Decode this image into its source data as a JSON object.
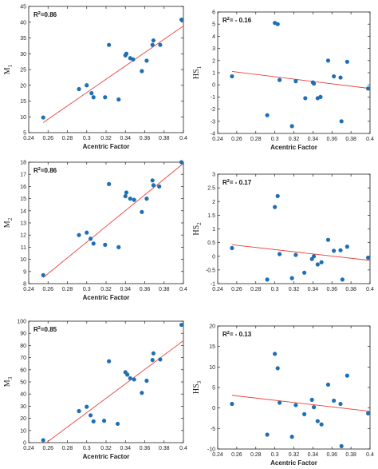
{
  "chart_data": [
    {
      "type": "scatter",
      "id": "p1",
      "ylabel_main": "M",
      "ylabel_sub": "1",
      "xlabel": "Acentric Factor",
      "annotation": {
        "main": "R",
        "sup": "2",
        "rest": "=0.86"
      },
      "xlim": [
        0.24,
        0.4
      ],
      "ylim": [
        5,
        45
      ],
      "xticks": [
        "0.24",
        "0.26",
        "0.28",
        "0.3",
        "0.32",
        "0.34",
        "0.36",
        "0.38",
        "0.4"
      ],
      "yticks": [
        "5",
        "10",
        "15",
        "20",
        "25",
        "30",
        "35",
        "40",
        "45"
      ],
      "points": [
        [
          0.255,
          9.8
        ],
        [
          0.292,
          18.8
        ],
        [
          0.3,
          20.0
        ],
        [
          0.305,
          17.5
        ],
        [
          0.307,
          16.2
        ],
        [
          0.319,
          16.2
        ],
        [
          0.323,
          32.8
        ],
        [
          0.333,
          15.5
        ],
        [
          0.34,
          29.5
        ],
        [
          0.341,
          30.0
        ],
        [
          0.345,
          28.6
        ],
        [
          0.348,
          28.2
        ],
        [
          0.357,
          24.5
        ],
        [
          0.362,
          27.8
        ],
        [
          0.368,
          32.8
        ],
        [
          0.369,
          34.2
        ],
        [
          0.376,
          32.8
        ],
        [
          0.398,
          40.8
        ]
      ],
      "fit": [
        [
          0.255,
          8.2
        ],
        [
          0.4,
          38.8
        ]
      ]
    },
    {
      "type": "scatter",
      "id": "p2",
      "ylabel_main": "HS",
      "ylabel_sub": "1",
      "xlabel": "Acentric Factor",
      "annotation": {
        "main": "R",
        "sup": "2",
        "rest": "= - 0.16"
      },
      "xlim": [
        0.24,
        0.4
      ],
      "ylim": [
        -4,
        6
      ],
      "xticks": [
        "0.24",
        "0.26",
        "0.28",
        "0.3",
        "0.32",
        "0.34",
        "0.36",
        "0.38",
        "0.4"
      ],
      "yticks": [
        "-4",
        "-3",
        "-2",
        "-1",
        "0",
        "1",
        "2",
        "3",
        "4",
        "5",
        "6"
      ],
      "points": [
        [
          0.255,
          0.7
        ],
        [
          0.292,
          -2.5
        ],
        [
          0.3,
          5.1
        ],
        [
          0.303,
          5.0
        ],
        [
          0.305,
          0.4
        ],
        [
          0.318,
          -3.4
        ],
        [
          0.322,
          0.3
        ],
        [
          0.332,
          -1.1
        ],
        [
          0.34,
          0.2
        ],
        [
          0.341,
          0.1
        ],
        [
          0.345,
          -1.1
        ],
        [
          0.348,
          -1.0
        ],
        [
          0.356,
          2.0
        ],
        [
          0.362,
          0.7
        ],
        [
          0.369,
          0.6
        ],
        [
          0.37,
          -3.0
        ],
        [
          0.376,
          1.9
        ],
        [
          0.398,
          -0.3
        ]
      ],
      "fit": [
        [
          0.255,
          1.1
        ],
        [
          0.4,
          -0.3
        ]
      ]
    },
    {
      "type": "scatter",
      "id": "p3",
      "ylabel_main": "M",
      "ylabel_sub": "2",
      "xlabel": "Acentric Factor",
      "annotation": {
        "main": "R",
        "sup": "2",
        "rest": "=0.86"
      },
      "xlim": [
        0.24,
        0.4
      ],
      "ylim": [
        8,
        18
      ],
      "xticks": [
        "0.24",
        "0.26",
        "0.28",
        "0.3",
        "0.32",
        "0.34",
        "0.36",
        "0.38",
        "0.4"
      ],
      "yticks": [
        "8",
        "9",
        "10",
        "11",
        "12",
        "13",
        "14",
        "15",
        "16",
        "17",
        "18"
      ],
      "points": [
        [
          0.255,
          8.7
        ],
        [
          0.292,
          12.0
        ],
        [
          0.3,
          12.2
        ],
        [
          0.304,
          11.7
        ],
        [
          0.307,
          11.3
        ],
        [
          0.319,
          11.2
        ],
        [
          0.323,
          16.2
        ],
        [
          0.333,
          11.0
        ],
        [
          0.34,
          15.2
        ],
        [
          0.341,
          15.5
        ],
        [
          0.345,
          15.0
        ],
        [
          0.349,
          14.9
        ],
        [
          0.357,
          13.9
        ],
        [
          0.362,
          15.0
        ],
        [
          0.368,
          16.5
        ],
        [
          0.369,
          16.1
        ],
        [
          0.375,
          16.0
        ],
        [
          0.398,
          18.0
        ]
      ],
      "fit": [
        [
          0.255,
          8.5
        ],
        [
          0.4,
          17.9
        ]
      ]
    },
    {
      "type": "scatter",
      "id": "p4",
      "ylabel_main": "HS",
      "ylabel_sub": "2",
      "xlabel": "",
      "annotation": {
        "main": "R",
        "sup": "2",
        "rest": "= - 0.17"
      },
      "xlim": [
        0.24,
        0.4
      ],
      "ylim": [
        -1,
        3
      ],
      "xticks": [
        "0.24",
        "0.26",
        "0.28",
        "0.3",
        "0.32",
        "0.34",
        "0.36",
        "0.38",
        "0.4"
      ],
      "yticks": [
        "-1",
        "-0.5",
        "0",
        "0.5",
        "1",
        "1.5",
        "2",
        "2.5",
        "3"
      ],
      "points": [
        [
          0.255,
          0.3
        ],
        [
          0.292,
          -0.85
        ],
        [
          0.3,
          1.8
        ],
        [
          0.303,
          2.2
        ],
        [
          0.305,
          0.08
        ],
        [
          0.318,
          -0.8
        ],
        [
          0.322,
          0.05
        ],
        [
          0.331,
          -0.6
        ],
        [
          0.339,
          -0.1
        ],
        [
          0.341,
          0.0
        ],
        [
          0.345,
          -0.3
        ],
        [
          0.349,
          -0.22
        ],
        [
          0.356,
          0.6
        ],
        [
          0.362,
          0.2
        ],
        [
          0.369,
          0.22
        ],
        [
          0.371,
          -0.85
        ],
        [
          0.376,
          0.35
        ],
        [
          0.398,
          -0.05
        ]
      ],
      "fit": [
        [
          0.255,
          0.42
        ],
        [
          0.4,
          -0.15
        ]
      ]
    },
    {
      "type": "scatter",
      "id": "p5",
      "ylabel_main": "M",
      "ylabel_sub": "3",
      "xlabel": "Acentric Factor",
      "annotation": {
        "main": "R",
        "sup": "2",
        "rest": "=0.85"
      },
      "xlim": [
        0.24,
        0.4
      ],
      "ylim": [
        0,
        100
      ],
      "xticks": [
        "0.24",
        "0.26",
        "0.28",
        "0.3",
        "0.32",
        "0.34",
        "0.36",
        "0.38",
        "0.4"
      ],
      "yticks": [
        "0",
        "10",
        "20",
        "30",
        "40",
        "50",
        "60",
        "70",
        "80",
        "90",
        "100"
      ],
      "points": [
        [
          0.255,
          2.0
        ],
        [
          0.292,
          26.0
        ],
        [
          0.3,
          29.5
        ],
        [
          0.304,
          22.5
        ],
        [
          0.307,
          17.5
        ],
        [
          0.318,
          18.0
        ],
        [
          0.323,
          67.0
        ],
        [
          0.332,
          15.5
        ],
        [
          0.34,
          58.0
        ],
        [
          0.342,
          56.0
        ],
        [
          0.345,
          53.0
        ],
        [
          0.349,
          52.0
        ],
        [
          0.357,
          41.0
        ],
        [
          0.362,
          51.0
        ],
        [
          0.368,
          68.0
        ],
        [
          0.369,
          73.5
        ],
        [
          0.376,
          68.5
        ],
        [
          0.398,
          97.0
        ]
      ],
      "fit": [
        [
          0.255,
          -2.0
        ],
        [
          0.4,
          84.0
        ]
      ]
    },
    {
      "type": "scatter",
      "id": "p6",
      "ylabel_main": "HS",
      "ylabel_sub": "3",
      "xlabel": "Acentric Factor",
      "annotation": {
        "main": "R",
        "sup": "2",
        "rest": "= - 0.13"
      },
      "xlim": [
        0.24,
        0.4
      ],
      "ylim": [
        -10,
        20
      ],
      "xticks": [
        "0.24",
        "0.26",
        "0.28",
        "0.3",
        "0.32",
        "0.34",
        "0.36",
        "0.38",
        "0.4"
      ],
      "yticks": [
        "-10",
        "-5",
        "0",
        "5",
        "10",
        "15",
        "20"
      ],
      "points": [
        [
          0.255,
          1.0
        ],
        [
          0.292,
          -6.5
        ],
        [
          0.3,
          13.2
        ],
        [
          0.303,
          9.7
        ],
        [
          0.305,
          1.3
        ],
        [
          0.318,
          -7.0
        ],
        [
          0.322,
          0.7
        ],
        [
          0.331,
          -1.5
        ],
        [
          0.339,
          2.0
        ],
        [
          0.341,
          0.2
        ],
        [
          0.345,
          -3.2
        ],
        [
          0.349,
          -4.0
        ],
        [
          0.356,
          5.7
        ],
        [
          0.362,
          1.8
        ],
        [
          0.369,
          1.0
        ],
        [
          0.37,
          -9.3
        ],
        [
          0.376,
          7.9
        ],
        [
          0.398,
          -1.3
        ]
      ],
      "fit": [
        [
          0.255,
          3.1
        ],
        [
          0.4,
          -0.8
        ]
      ]
    }
  ],
  "colors": {
    "point": "#1f6fb4",
    "fit": "#e8413c",
    "axis": "#222222",
    "grid_bg": "#ffffff"
  }
}
